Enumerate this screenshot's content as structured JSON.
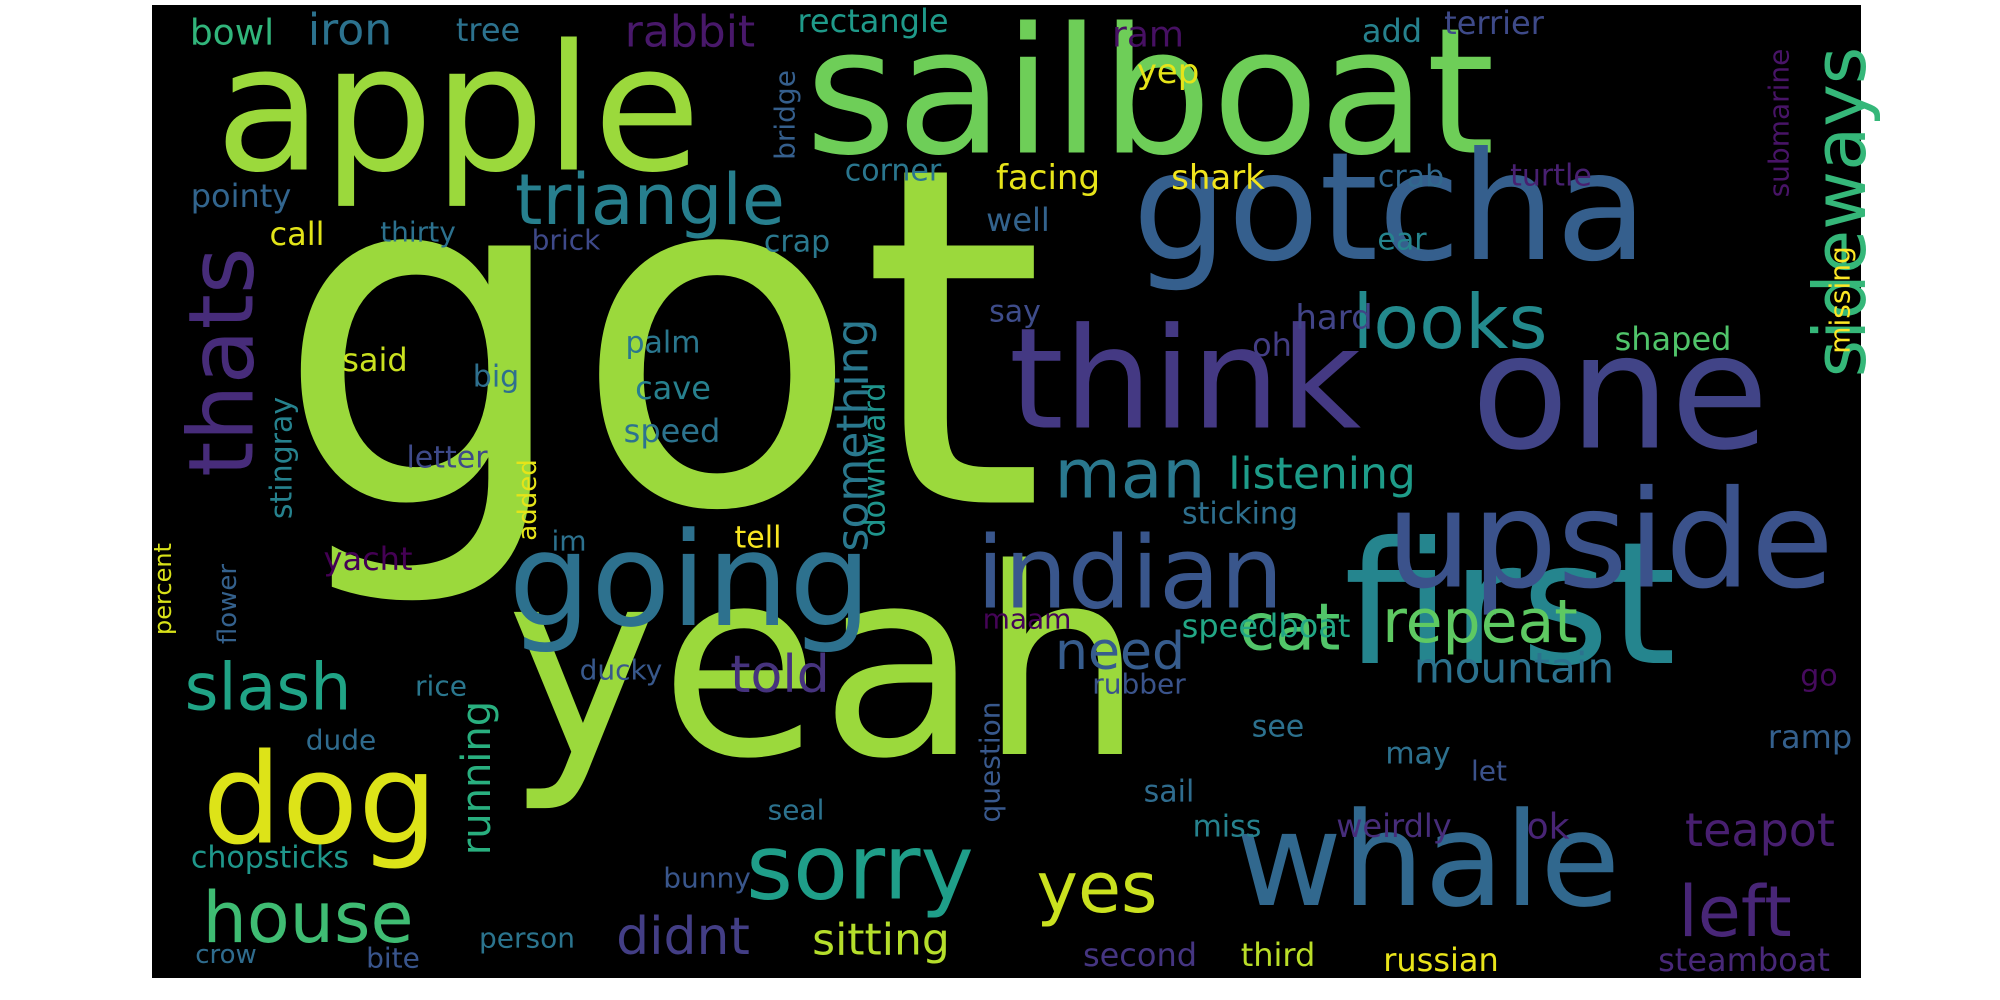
{
  "canvas": {
    "background": "#000000",
    "page_background": "#ffffff"
  },
  "words": [
    {
      "text": "got",
      "color": "#9bd93c"
    },
    {
      "text": "yeah",
      "color": "#9bd93c"
    },
    {
      "text": "sailboat",
      "color": "#6ece58"
    },
    {
      "text": "apple",
      "color": "#9bd93c"
    },
    {
      "text": "gotcha",
      "color": "#355f8d"
    },
    {
      "text": "one",
      "color": "#414487"
    },
    {
      "text": "think",
      "color": "#443983"
    },
    {
      "text": "first",
      "color": "#25858e"
    },
    {
      "text": "whale",
      "color": "#31688e"
    },
    {
      "text": "upside",
      "color": "#3b528b"
    },
    {
      "text": "going",
      "color": "#2d718e"
    },
    {
      "text": "indian",
      "color": "#39568c"
    },
    {
      "text": "dog",
      "color": "#dde318"
    },
    {
      "text": "sorry",
      "color": "#1f9e89"
    },
    {
      "text": "triangle",
      "color": "#277f8e"
    },
    {
      "text": "thats",
      "color": "#472c7a"
    },
    {
      "text": "sideways",
      "color": "#35b779"
    },
    {
      "text": "looks",
      "color": "#238a8d"
    },
    {
      "text": "man",
      "color": "#2a788e"
    },
    {
      "text": "house",
      "color": "#3fbc73"
    },
    {
      "text": "slash",
      "color": "#20a486"
    },
    {
      "text": "cat",
      "color": "#52c569"
    },
    {
      "text": "repeat",
      "color": "#5ec962"
    },
    {
      "text": "left",
      "color": "#482677"
    },
    {
      "text": "yes",
      "color": "#cae11f"
    },
    {
      "text": "need",
      "color": "#365c8d"
    },
    {
      "text": "told",
      "color": "#46337e"
    },
    {
      "text": "didnt",
      "color": "#433e85"
    },
    {
      "text": "mountain",
      "color": "#2c728e"
    },
    {
      "text": "teapot",
      "color": "#481f70"
    },
    {
      "text": "listening",
      "color": "#1e9c89"
    },
    {
      "text": "something",
      "color": "#2a788e"
    },
    {
      "text": "running",
      "color": "#29af7f"
    },
    {
      "text": "sitting",
      "color": "#b5de2b"
    },
    {
      "text": "rabbit",
      "color": "#48186a"
    },
    {
      "text": "iron",
      "color": "#2c728e"
    },
    {
      "text": "bowl",
      "color": "#31b57b"
    },
    {
      "text": "tree",
      "color": "#2c728e"
    },
    {
      "text": "rectangle",
      "color": "#1f9a8a"
    },
    {
      "text": "ram",
      "color": "#471063"
    },
    {
      "text": "add",
      "color": "#26828e"
    },
    {
      "text": "terrier",
      "color": "#3e4a89"
    },
    {
      "text": "yep",
      "color": "#e5e419"
    },
    {
      "text": "submarine",
      "color": "#481467"
    },
    {
      "text": "bridge",
      "color": "#355f8d"
    },
    {
      "text": "corner",
      "color": "#2a768e"
    },
    {
      "text": "facing",
      "color": "#e7e419"
    },
    {
      "text": "shark",
      "color": "#f1e51d"
    },
    {
      "text": "crab",
      "color": "#31688e"
    },
    {
      "text": "turtle",
      "color": "#482071"
    },
    {
      "text": "pointy",
      "color": "#32658e"
    },
    {
      "text": "call",
      "color": "#e2e418"
    },
    {
      "text": "thirty",
      "color": "#2c718e"
    },
    {
      "text": "brick",
      "color": "#3e4989"
    },
    {
      "text": "crap",
      "color": "#2a788e"
    },
    {
      "text": "well",
      "color": "#33638d"
    },
    {
      "text": "ear",
      "color": "#25848e"
    },
    {
      "text": "missing",
      "color": "#fde725"
    },
    {
      "text": "say",
      "color": "#3e4c8a"
    },
    {
      "text": "hard",
      "color": "#414487"
    },
    {
      "text": "shaped",
      "color": "#50c46a"
    },
    {
      "text": "palm",
      "color": "#2a778e"
    },
    {
      "text": "said",
      "color": "#cae11f"
    },
    {
      "text": "oh",
      "color": "#433d84"
    },
    {
      "text": "big",
      "color": "#2e6f8e"
    },
    {
      "text": "cave",
      "color": "#27808e"
    },
    {
      "text": "downward",
      "color": "#1f948c"
    },
    {
      "text": "speed",
      "color": "#2c738e"
    },
    {
      "text": "stingray",
      "color": "#26828e"
    },
    {
      "text": "letter",
      "color": "#3e4a89"
    },
    {
      "text": "added",
      "color": "#e5e419"
    },
    {
      "text": "sticking",
      "color": "#2e6f8e"
    },
    {
      "text": "tell",
      "color": "#f8e621"
    },
    {
      "text": "im",
      "color": "#2c718e"
    },
    {
      "text": "yacht",
      "color": "#440154"
    },
    {
      "text": "flower",
      "color": "#34618d"
    },
    {
      "text": "percent",
      "color": "#d8e219"
    },
    {
      "text": "speedboat",
      "color": "#22a785"
    },
    {
      "text": "maam",
      "color": "#450457"
    },
    {
      "text": "rice",
      "color": "#2a778e"
    },
    {
      "text": "ducky",
      "color": "#38588c"
    },
    {
      "text": "rubber",
      "color": "#3a538b"
    },
    {
      "text": "go",
      "color": "#460b5e"
    },
    {
      "text": "dude",
      "color": "#2f6b8e"
    },
    {
      "text": "question",
      "color": "#38588c"
    },
    {
      "text": "see",
      "color": "#2c718e"
    },
    {
      "text": "may",
      "color": "#2d708e"
    },
    {
      "text": "let",
      "color": "#3b528b"
    },
    {
      "text": "ramp",
      "color": "#34608d"
    },
    {
      "text": "sail",
      "color": "#2f6c8e"
    },
    {
      "text": "seal",
      "color": "#2c728e"
    },
    {
      "text": "chopsticks",
      "color": "#1f978b"
    },
    {
      "text": "miss",
      "color": "#26828e"
    },
    {
      "text": "weirdly",
      "color": "#472d7b"
    },
    {
      "text": "ok",
      "color": "#482475"
    },
    {
      "text": "bunny",
      "color": "#39568c"
    },
    {
      "text": "crow",
      "color": "#2f6c8e"
    },
    {
      "text": "bite",
      "color": "#39558c"
    },
    {
      "text": "person",
      "color": "#2b748e"
    },
    {
      "text": "second",
      "color": "#453581"
    },
    {
      "text": "third",
      "color": "#bade28"
    },
    {
      "text": "russian",
      "color": "#eae51a"
    },
    {
      "text": "steamboat",
      "color": "#482878"
    }
  ]
}
